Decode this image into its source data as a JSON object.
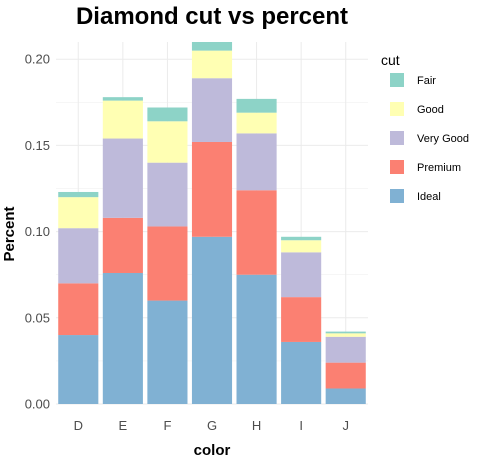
{
  "chart_data": {
    "type": "bar",
    "stacked": true,
    "title": "Diamond cut vs percent",
    "xlabel": "color",
    "ylabel": "Percent",
    "categories": [
      "D",
      "E",
      "F",
      "G",
      "H",
      "I",
      "J"
    ],
    "ylim": [
      0,
      0.21
    ],
    "yticks": [
      "0.00",
      "0.05",
      "0.10",
      "0.15",
      "0.20"
    ],
    "yticks_values": [
      0,
      0.05,
      0.1,
      0.15,
      0.2
    ],
    "grid": true,
    "legend": {
      "title": "cut",
      "placement": "right",
      "entries": [
        "Fair",
        "Good",
        "Very Good",
        "Premium",
        "Ideal"
      ]
    },
    "series": [
      {
        "name": "Ideal",
        "color": "#80b1d3",
        "values": [
          0.04,
          0.076,
          0.06,
          0.097,
          0.075,
          0.036,
          0.009
        ]
      },
      {
        "name": "Premium",
        "color": "#fb8072",
        "values": [
          0.03,
          0.032,
          0.043,
          0.055,
          0.049,
          0.026,
          0.015
        ]
      },
      {
        "name": "Very Good",
        "color": "#bebada",
        "values": [
          0.032,
          0.046,
          0.037,
          0.037,
          0.033,
          0.026,
          0.015
        ]
      },
      {
        "name": "Good",
        "color": "#ffffb3",
        "values": [
          0.018,
          0.022,
          0.024,
          0.016,
          0.012,
          0.007,
          0.002
        ]
      },
      {
        "name": "Fair",
        "color": "#8dd3c7",
        "values": [
          0.003,
          0.002,
          0.008,
          0.005,
          0.008,
          0.002,
          0.001
        ]
      }
    ]
  }
}
